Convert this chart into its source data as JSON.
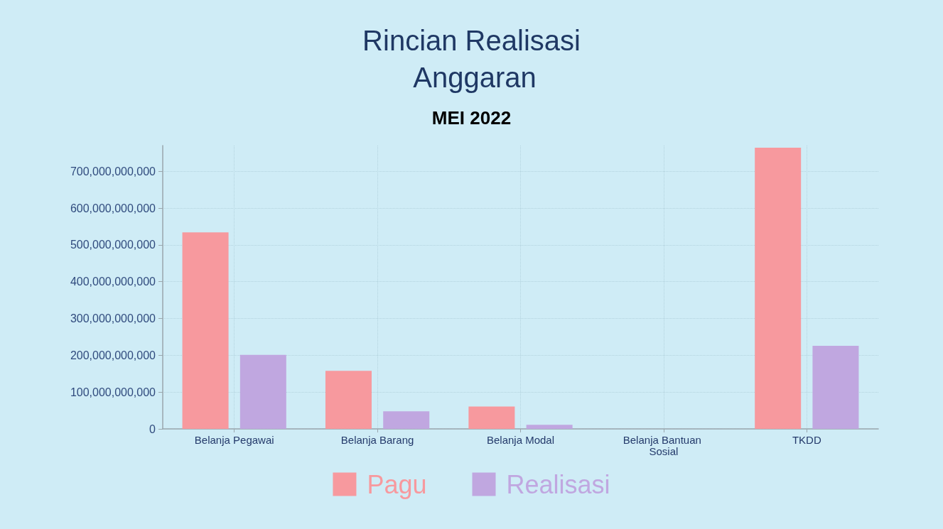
{
  "chart_data": {
    "type": "bar",
    "title": "Rincian Realisasi Anggaran",
    "subtitle": "MEI 2022",
    "categories": [
      "Belanja Pegawai",
      "Belanja Barang",
      "Belanja Modal",
      "Belanja Bantuan Sosial",
      "TKDD"
    ],
    "series": [
      {
        "name": "Pagu",
        "color": "#f7999e",
        "values": [
          534000000000,
          158000000000,
          61000000000,
          0,
          764000000000
        ]
      },
      {
        "name": "Realisasi",
        "color": "#c0a7e0",
        "values": [
          201000000000,
          48000000000,
          11000000000,
          0,
          226000000000
        ]
      }
    ],
    "ylim": [
      0,
      770000000000
    ],
    "yticks": [
      0,
      {
        "value": 100000000000,
        "label": "100,000,000,000"
      },
      {
        "value": 200000000000,
        "label": "200,000,000,000"
      },
      {
        "value": 300000000000,
        "label": "300,000,000,000"
      },
      {
        "value": 400000000000,
        "label": "400,000,000,000"
      },
      {
        "value": 500000000000,
        "label": "500,000,000,000"
      },
      {
        "value": 600000000000,
        "label": "600,000,000,000"
      },
      {
        "value": 700000000000,
        "label": "700,000,000,000"
      }
    ],
    "grid": true,
    "legend": "bottom"
  }
}
